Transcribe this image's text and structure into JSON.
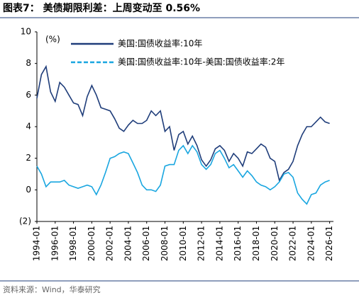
{
  "chart_data": {
    "type": "line",
    "title": "图表7：  美债期限利差：上周变动至 0.56%",
    "y_label": "(%)",
    "source": "资料来源：Wind，华泰研究",
    "x": [
      "1994-01",
      "1994-07",
      "1995-01",
      "1995-07",
      "1996-01",
      "1996-07",
      "1997-01",
      "1997-07",
      "1998-01",
      "1998-07",
      "1999-01",
      "1999-07",
      "2000-01",
      "2000-07",
      "2001-01",
      "2001-07",
      "2002-01",
      "2002-07",
      "2003-01",
      "2003-07",
      "2004-01",
      "2004-07",
      "2005-01",
      "2005-07",
      "2006-01",
      "2006-07",
      "2007-01",
      "2007-07",
      "2008-01",
      "2008-07",
      "2009-01",
      "2009-07",
      "2010-01",
      "2010-07",
      "2011-01",
      "2011-07",
      "2012-01",
      "2012-07",
      "2013-01",
      "2013-07",
      "2014-01",
      "2014-07",
      "2015-01",
      "2015-07",
      "2016-01",
      "2016-07",
      "2017-01",
      "2017-07",
      "2018-01",
      "2018-07",
      "2019-01",
      "2019-07",
      "2020-01",
      "2020-07",
      "2021-01",
      "2021-07",
      "2022-01",
      "2022-07",
      "2023-01",
      "2023-07",
      "2024-01",
      "2024-07",
      "2025-01",
      "2025-07",
      "2026-01"
    ],
    "series": [
      {
        "name": "美国:国债收益率:10年",
        "color": "#1f3d7a",
        "values": [
          5.8,
          7.3,
          7.8,
          6.2,
          5.6,
          6.8,
          6.5,
          6.0,
          5.5,
          5.4,
          4.7,
          5.9,
          6.6,
          6.0,
          5.2,
          5.1,
          5.0,
          4.5,
          3.9,
          3.7,
          4.1,
          4.4,
          4.2,
          4.2,
          4.4,
          5.0,
          4.7,
          5.0,
          3.7,
          4.0,
          2.5,
          3.5,
          3.7,
          2.9,
          3.4,
          2.8,
          1.9,
          1.5,
          1.9,
          2.6,
          2.8,
          2.5,
          1.8,
          2.3,
          2.0,
          1.5,
          2.4,
          2.3,
          2.6,
          2.9,
          2.7,
          2.0,
          1.8,
          0.6,
          1.1,
          1.3,
          1.8,
          2.8,
          3.5,
          4.0,
          4.0,
          4.3,
          4.6,
          4.3,
          4.2
        ]
      },
      {
        "name": "美国:国债收益率:10年-美国:国债收益率:2年",
        "color": "#19a6e0",
        "values": [
          1.5,
          1.0,
          0.2,
          0.5,
          0.5,
          0.5,
          0.6,
          0.3,
          0.2,
          0.1,
          0.2,
          0.3,
          0.2,
          -0.3,
          0.3,
          1.1,
          2.0,
          2.1,
          2.3,
          2.4,
          2.3,
          1.7,
          1.1,
          0.3,
          0.0,
          0.0,
          -0.1,
          0.3,
          1.5,
          1.6,
          1.6,
          2.5,
          2.8,
          2.3,
          2.8,
          2.4,
          1.6,
          1.3,
          1.6,
          2.3,
          2.5,
          2.0,
          1.4,
          1.6,
          1.2,
          0.8,
          1.2,
          0.9,
          0.5,
          0.3,
          0.2,
          0.0,
          0.2,
          0.5,
          1.0,
          1.1,
          0.8,
          -0.2,
          -0.6,
          -0.9,
          -0.3,
          -0.2,
          0.3,
          0.5,
          0.6
        ]
      }
    ],
    "xlim": [
      "1994-01",
      "2026-06"
    ],
    "xticks": [
      "1994-01",
      "1996-01",
      "1998-01",
      "2000-01",
      "2002-01",
      "2004-01",
      "2006-01",
      "2008-01",
      "2010-01",
      "2012-01",
      "2014-01",
      "2016-01",
      "2018-01",
      "2020-01",
      "2022-01",
      "2024-01",
      "2026-01"
    ],
    "ylim": [
      -2,
      10
    ],
    "yticks": [
      {
        "value": -2,
        "label": "(2)"
      },
      0,
      2,
      4,
      6,
      8,
      10
    ],
    "grid": false
  }
}
